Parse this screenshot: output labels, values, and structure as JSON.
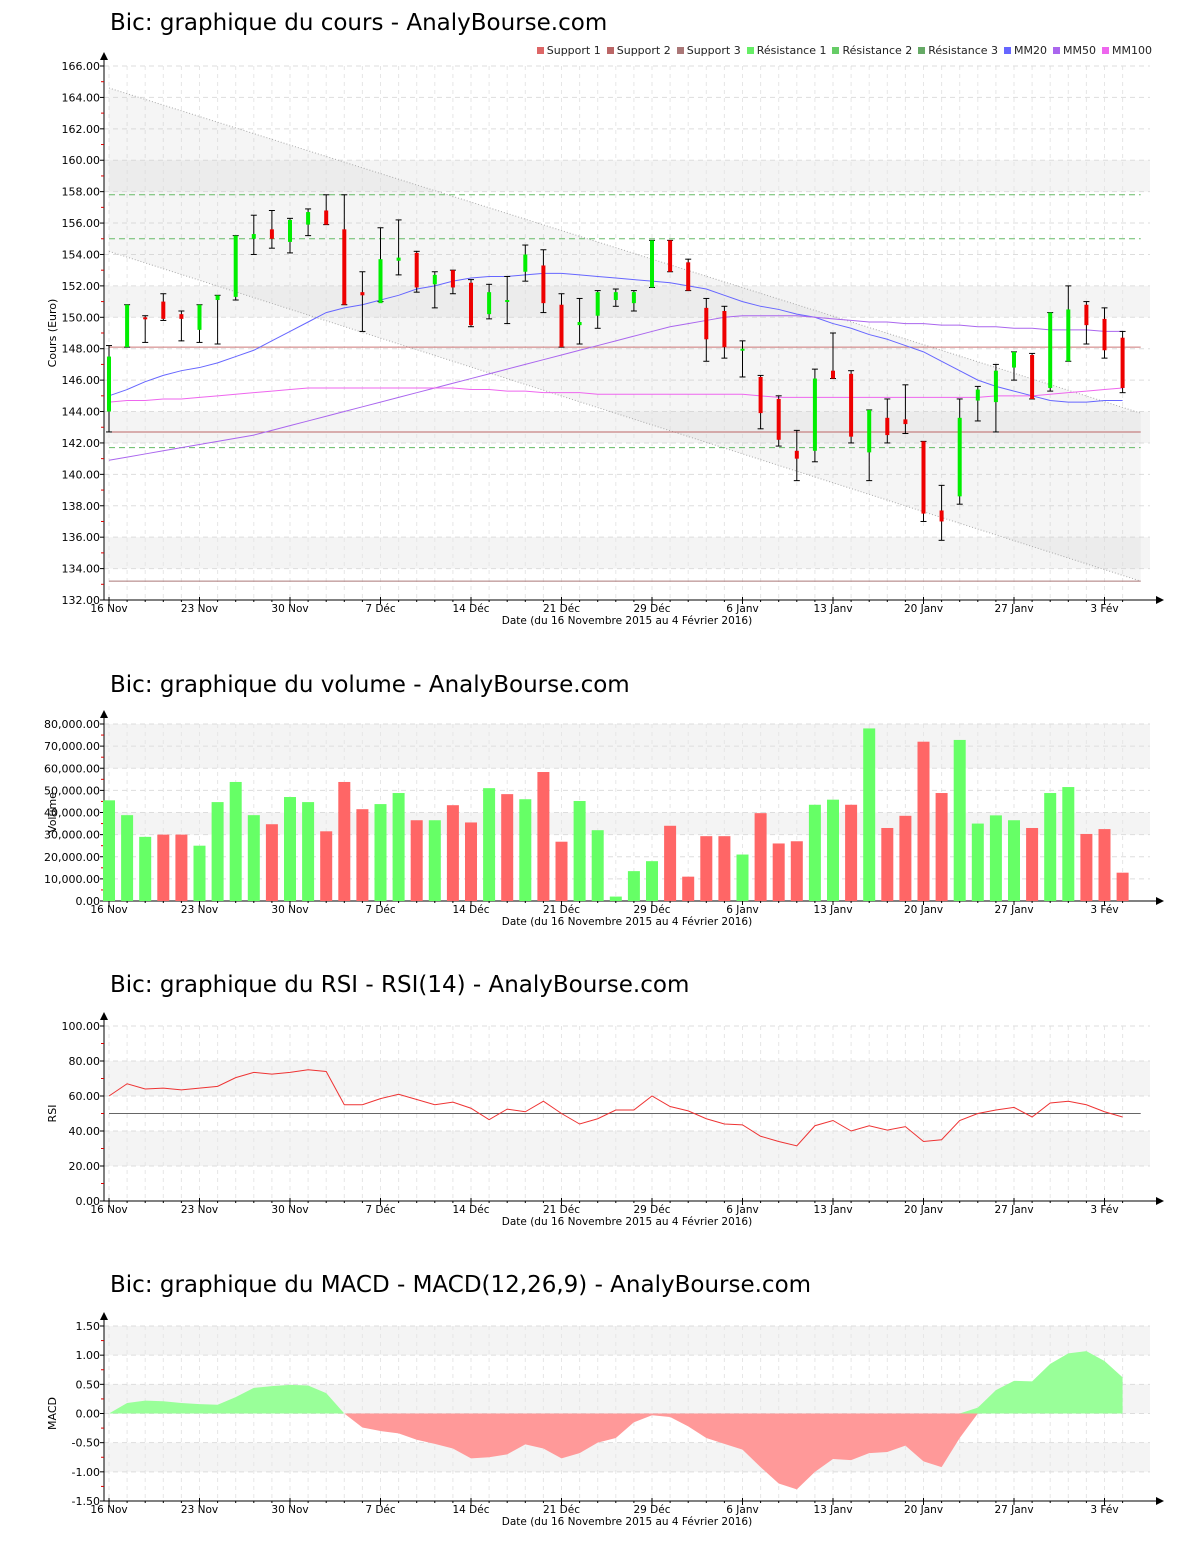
{
  "common": {
    "x_ticks": [
      "16 Nov",
      "23 Nov",
      "30 Nov",
      "7 Déc",
      "14 Déc",
      "21 Déc",
      "29 Déc",
      "6 Janv",
      "13 Janv",
      "20 Janv",
      "27 Janv",
      "3 Fév"
    ],
    "x_tick_idx": [
      0,
      5,
      10,
      15,
      20,
      25,
      30,
      35,
      40,
      45,
      50,
      55
    ],
    "xlabel": "Date (du 16 Novembre 2015 au 4 Février 2016)",
    "colors": {
      "up": "#00ee00",
      "down": "#ee0000",
      "vol_up": "#66ff66",
      "vol_down": "#ff6666",
      "macd_pos": "#99ff99",
      "macd_neg": "#ff9999",
      "rsi": "#ee3333",
      "grid": "#dddddd",
      "band": "#f4f4f4"
    }
  },
  "price_chart": {
    "title": "Bic: graphique du cours - AnalyBourse.com",
    "ylabel": "Cours (Euro)",
    "legend": [
      {
        "label": "Support 1",
        "color": "#dd6666"
      },
      {
        "label": "Support 2",
        "color": "#bb6666"
      },
      {
        "label": "Support 3",
        "color": "#aa7777"
      },
      {
        "label": "Résistance 1",
        "color": "#66ee66"
      },
      {
        "label": "Résistance 2",
        "color": "#66cc66"
      },
      {
        "label": "Résistance 3",
        "color": "#66aa66"
      },
      {
        "label": "MM20",
        "color": "#6666ff"
      },
      {
        "label": "MM50",
        "color": "#aa66ee"
      },
      {
        "label": "MM100",
        "color": "#ee66ee"
      }
    ]
  },
  "volume_chart": {
    "title": "Bic: graphique du volume - AnalyBourse.com",
    "ylabel": "Volume"
  },
  "rsi_chart": {
    "title": "Bic: graphique du RSI - RSI(14) - AnalyBourse.com",
    "ylabel": "RSI"
  },
  "macd_chart": {
    "title": "Bic: graphique du MACD - MACD(12,26,9) - AnalyBourse.com",
    "ylabel": "MACD"
  },
  "chart_data": [
    {
      "type": "candlestick",
      "title": "Bic: graphique du cours - AnalyBourse.com",
      "xlabel": "Date (du 16 Novembre 2015 au 4 Février 2016)",
      "ylabel": "Cours (Euro)",
      "ylim": [
        132,
        166
      ],
      "y_ticks": [
        132,
        134,
        136,
        138,
        140,
        142,
        144,
        146,
        148,
        150,
        152,
        154,
        156,
        158,
        160,
        162,
        164,
        166
      ],
      "legend_position": "top-right",
      "horizontal_lines": {
        "support_1": 148.1,
        "support_2": 142.7,
        "support_3": 133.2,
        "resistance_1": 141.7,
        "resistance_2": 155.0,
        "resistance_3": 157.8
      },
      "trend_channel": {
        "upper": [
          [
            0,
            164.6
          ],
          [
            57,
            143.9
          ]
        ],
        "lower": [
          [
            0,
            154.2
          ],
          [
            57,
            133.2
          ]
        ]
      },
      "ohlc": [
        [
          144.0,
          148.2,
          142.7,
          147.5
        ],
        [
          148.1,
          150.8,
          148.1,
          150.8
        ],
        [
          150.0,
          150.1,
          148.4,
          149.9
        ],
        [
          151.0,
          151.5,
          149.8,
          149.9
        ],
        [
          150.2,
          150.4,
          148.5,
          149.9
        ],
        [
          149.2,
          150.8,
          148.4,
          150.8
        ],
        [
          151.1,
          151.4,
          148.3,
          151.4
        ],
        [
          151.3,
          155.2,
          151.1,
          155.2
        ],
        [
          155.0,
          156.5,
          154.0,
          155.3
        ],
        [
          155.6,
          156.8,
          154.4,
          155.0
        ],
        [
          154.8,
          156.3,
          154.1,
          156.2
        ],
        [
          155.9,
          156.9,
          155.2,
          156.7
        ],
        [
          156.8,
          157.8,
          155.9,
          155.9
        ],
        [
          155.6,
          157.8,
          150.8,
          150.8
        ],
        [
          151.6,
          152.9,
          149.1,
          151.4
        ],
        [
          150.9,
          155.7,
          151.0,
          153.7
        ],
        [
          153.6,
          156.2,
          152.7,
          153.8
        ],
        [
          154.1,
          154.2,
          151.6,
          151.9
        ],
        [
          152.1,
          152.9,
          150.6,
          152.7
        ],
        [
          153.0,
          153.0,
          151.5,
          151.9
        ],
        [
          152.2,
          152.4,
          149.4,
          149.5
        ],
        [
          150.2,
          152.1,
          149.9,
          151.6
        ],
        [
          151.0,
          152.6,
          149.6,
          151.1
        ],
        [
          152.9,
          154.6,
          152.3,
          154.0
        ],
        [
          153.3,
          154.3,
          150.3,
          150.9
        ],
        [
          150.8,
          151.5,
          148.1,
          148.1
        ],
        [
          149.5,
          151.2,
          148.3,
          149.7
        ],
        [
          150.1,
          151.7,
          149.3,
          151.6
        ],
        [
          151.1,
          151.8,
          150.7,
          151.6
        ],
        [
          150.9,
          151.7,
          150.4,
          151.6
        ],
        [
          151.9,
          154.9,
          151.9,
          154.9
        ],
        [
          154.9,
          154.9,
          152.9,
          152.9
        ],
        [
          153.5,
          153.7,
          151.7,
          151.7
        ],
        [
          150.6,
          151.2,
          147.2,
          148.6
        ],
        [
          150.4,
          150.7,
          147.4,
          148.1
        ],
        [
          148.0,
          148.5,
          146.2,
          148.0
        ],
        [
          146.2,
          146.3,
          142.9,
          143.9
        ],
        [
          144.8,
          145.0,
          141.8,
          142.2
        ],
        [
          141.5,
          142.8,
          139.6,
          141.0
        ],
        [
          141.5,
          146.7,
          140.8,
          146.1
        ],
        [
          146.6,
          149.0,
          146.1,
          146.1
        ],
        [
          146.4,
          146.6,
          142.0,
          142.4
        ],
        [
          141.4,
          144.1,
          139.6,
          144.1
        ],
        [
          143.6,
          144.8,
          142.0,
          142.5
        ],
        [
          143.5,
          145.7,
          142.6,
          143.2
        ],
        [
          142.1,
          142.1,
          137.0,
          137.5
        ],
        [
          137.7,
          139.3,
          135.8,
          137.0
        ],
        [
          138.6,
          144.8,
          138.1,
          143.6
        ],
        [
          144.7,
          145.6,
          143.4,
          145.4
        ],
        [
          144.6,
          147.0,
          142.7,
          146.6
        ],
        [
          146.8,
          147.8,
          146.0,
          147.8
        ],
        [
          147.6,
          147.7,
          144.8,
          144.8
        ],
        [
          145.5,
          150.3,
          145.3,
          150.3
        ],
        [
          147.2,
          152.0,
          147.2,
          150.5
        ],
        [
          150.8,
          151.0,
          148.3,
          149.5
        ],
        [
          149.9,
          150.6,
          147.4,
          147.9
        ],
        [
          148.7,
          149.1,
          145.2,
          145.5
        ]
      ],
      "series": [
        {
          "name": "MM20",
          "color": "#6666ff",
          "values": [
            145.0,
            145.4,
            145.9,
            146.3,
            146.6,
            146.8,
            147.1,
            147.5,
            147.9,
            148.5,
            149.1,
            149.7,
            150.3,
            150.6,
            150.8,
            151.1,
            151.4,
            151.8,
            152.0,
            152.3,
            152.5,
            152.6,
            152.6,
            152.7,
            152.8,
            152.8,
            152.7,
            152.6,
            152.5,
            152.4,
            152.3,
            152.2,
            152.0,
            151.8,
            151.4,
            151.0,
            150.7,
            150.5,
            150.2,
            150.0,
            149.6,
            149.3,
            148.9,
            148.6,
            148.2,
            147.8,
            147.2,
            146.6,
            146.0,
            145.6,
            145.3,
            145.0,
            144.7,
            144.6,
            144.6,
            144.7,
            144.7
          ]
        },
        {
          "name": "MM50",
          "color": "#aa66ee",
          "values": [
            140.9,
            141.1,
            141.3,
            141.5,
            141.7,
            141.9,
            142.1,
            142.3,
            142.5,
            142.8,
            143.1,
            143.4,
            143.7,
            144.0,
            144.3,
            144.6,
            144.9,
            145.2,
            145.5,
            145.8,
            146.1,
            146.4,
            146.7,
            147.0,
            147.3,
            147.6,
            147.9,
            148.2,
            148.5,
            148.8,
            149.1,
            149.4,
            149.6,
            149.8,
            150.0,
            150.1,
            150.1,
            150.1,
            150.1,
            150.0,
            149.9,
            149.8,
            149.7,
            149.7,
            149.6,
            149.6,
            149.5,
            149.5,
            149.4,
            149.4,
            149.3,
            149.3,
            149.2,
            149.2,
            149.2,
            149.1,
            149.1
          ]
        },
        {
          "name": "MM100",
          "color": "#ee66ee",
          "values": [
            144.6,
            144.7,
            144.7,
            144.8,
            144.8,
            144.9,
            145.0,
            145.1,
            145.2,
            145.3,
            145.4,
            145.5,
            145.5,
            145.5,
            145.5,
            145.5,
            145.5,
            145.5,
            145.5,
            145.5,
            145.4,
            145.4,
            145.3,
            145.3,
            145.2,
            145.2,
            145.2,
            145.1,
            145.1,
            145.1,
            145.1,
            145.1,
            145.1,
            145.1,
            145.1,
            145.1,
            145.0,
            144.9,
            144.9,
            144.9,
            144.9,
            144.9,
            144.9,
            144.9,
            144.9,
            144.9,
            144.9,
            144.9,
            144.9,
            145.0,
            145.0,
            145.0,
            145.1,
            145.2,
            145.3,
            145.4,
            145.5
          ]
        }
      ]
    },
    {
      "type": "bar",
      "title": "Bic: graphique du volume - AnalyBourse.com",
      "xlabel": "Date (du 16 Novembre 2015 au 4 Février 2016)",
      "ylabel": "Volume",
      "ylim": [
        0,
        80000
      ],
      "y_ticks": [
        "0.00",
        "10,000.00",
        "20,000.00",
        "30,000.00",
        "40,000.00",
        "50,000.00",
        "60,000.00",
        "70,000.00",
        "80,000.00"
      ],
      "values": [
        45500,
        38800,
        29000,
        30000,
        30000,
        25000,
        44700,
        53800,
        38800,
        34700,
        47000,
        44700,
        31500,
        53800,
        41500,
        43800,
        48800,
        36500,
        36500,
        43300,
        35500,
        51000,
        48300,
        46000,
        58300,
        26800,
        45200,
        32000,
        2000,
        13500,
        18000,
        34000,
        11000,
        29300,
        29300,
        21000,
        39700,
        26000,
        27000,
        43500,
        45800,
        43500,
        78000,
        33000,
        38500,
        72000,
        48800,
        72800,
        35000,
        38700,
        36500,
        33000,
        48800,
        51500,
        30300,
        32500,
        12800
      ],
      "directions": [
        "up",
        "up",
        "up",
        "down",
        "down",
        "up",
        "up",
        "up",
        "up",
        "down",
        "up",
        "up",
        "down",
        "down",
        "down",
        "up",
        "up",
        "down",
        "up",
        "down",
        "down",
        "up",
        "down",
        "up",
        "down",
        "down",
        "up",
        "up",
        "up",
        "up",
        "up",
        "down",
        "down",
        "down",
        "down",
        "up",
        "down",
        "down",
        "down",
        "up",
        "up",
        "down",
        "up",
        "down",
        "down",
        "down",
        "down",
        "up",
        "up",
        "up",
        "up",
        "down",
        "up",
        "up",
        "down",
        "down",
        "down"
      ]
    },
    {
      "type": "line",
      "title": "Bic: graphique du RSI - RSI(14) - AnalyBourse.com",
      "xlabel": "Date (du 16 Novembre 2015 au 4 Février 2016)",
      "ylabel": "RSI",
      "ylim": [
        0,
        100
      ],
      "y_ticks": [
        "0.00",
        "20.00",
        "40.00",
        "60.00",
        "80.00",
        "100.00"
      ],
      "reference_line": 50,
      "values": [
        60,
        67,
        64,
        64.5,
        63.5,
        64.5,
        65.5,
        70.5,
        73.5,
        72.5,
        73.5,
        75,
        74,
        55,
        55,
        58.5,
        61,
        58,
        55,
        56.5,
        53,
        46.5,
        52.5,
        51,
        57,
        50,
        44,
        47,
        52,
        52,
        60,
        54,
        51.5,
        47,
        44,
        43.5,
        37,
        34,
        31.5,
        43,
        46,
        40,
        43,
        40.5,
        42.5,
        34,
        35,
        46,
        50,
        52,
        53.5,
        48,
        56,
        57,
        55,
        51,
        48
      ]
    },
    {
      "type": "area",
      "title": "Bic: graphique du MACD - MACD(12,26,9) - AnalyBourse.com",
      "xlabel": "Date (du 16 Novembre 2015 au 4 Février 2016)",
      "ylabel": "MACD",
      "ylim": [
        -1.5,
        1.5
      ],
      "y_ticks": [
        "-1.50",
        "-1.00",
        "-0.50",
        "0.00",
        "0.50",
        "1.00",
        "1.50"
      ],
      "values": [
        0.0,
        0.18,
        0.22,
        0.21,
        0.18,
        0.16,
        0.15,
        0.28,
        0.44,
        0.47,
        0.49,
        0.48,
        0.35,
        0.0,
        -0.24,
        -0.3,
        -0.34,
        -0.45,
        -0.52,
        -0.6,
        -0.77,
        -0.75,
        -0.7,
        -0.53,
        -0.6,
        -0.77,
        -0.68,
        -0.5,
        -0.42,
        -0.15,
        -0.03,
        -0.06,
        -0.22,
        -0.42,
        -0.52,
        -0.62,
        -0.92,
        -1.2,
        -1.3,
        -1.0,
        -0.78,
        -0.8,
        -0.68,
        -0.66,
        -0.55,
        -0.82,
        -0.92,
        -0.42,
        0.1,
        0.4,
        0.56,
        0.55,
        0.85,
        1.03,
        1.07,
        0.9,
        0.62
      ]
    }
  ]
}
